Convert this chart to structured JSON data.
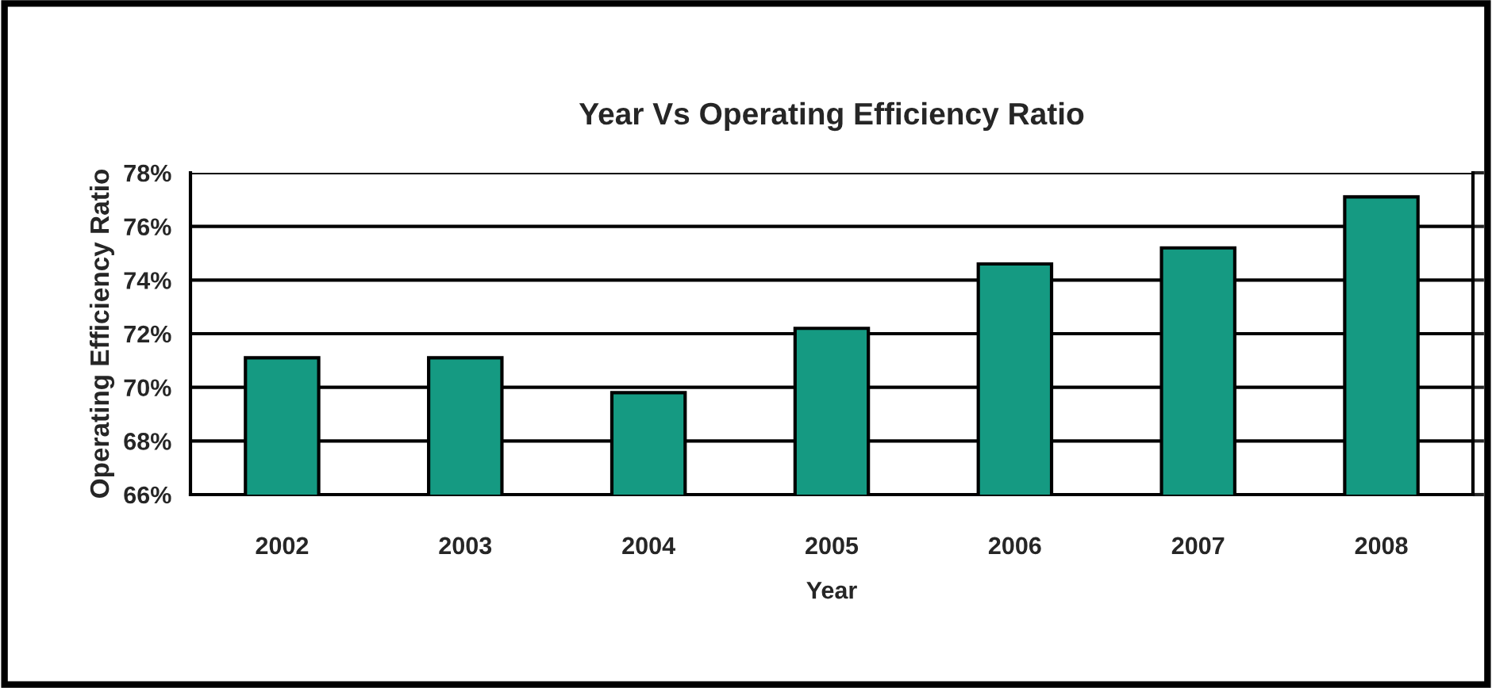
{
  "chart_data": {
    "type": "bar",
    "title": "Year Vs Operating Efficiency Ratio",
    "xlabel": "Year",
    "ylabel": "Operating Efficiency Ratio",
    "categories": [
      "2002",
      "2003",
      "2004",
      "2005",
      "2006",
      "2007",
      "2008"
    ],
    "values": [
      71.1,
      71.1,
      69.8,
      72.2,
      74.6,
      75.2,
      77.1
    ],
    "color": "#159a82",
    "ylim": [
      66,
      78
    ],
    "yticks": [
      {
        "value": 66,
        "label": "66%"
      },
      {
        "value": 68,
        "label": "68%"
      },
      {
        "value": 70,
        "label": "70%"
      },
      {
        "value": 72,
        "label": "72%"
      },
      {
        "value": 74,
        "label": "74%"
      },
      {
        "value": 76,
        "label": "76%"
      },
      {
        "value": 78,
        "label": "78%"
      }
    ],
    "grid": "y"
  }
}
